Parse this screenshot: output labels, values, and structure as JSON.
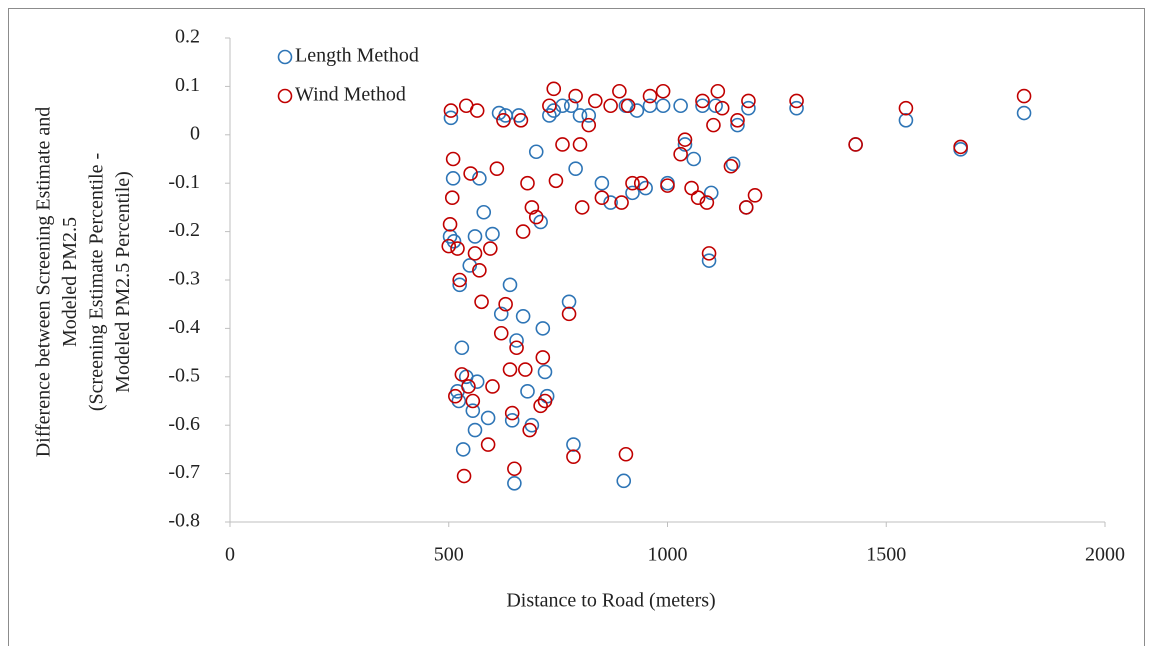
{
  "chart_data": {
    "type": "scatter",
    "x_label": "Distance to Road (meters)",
    "y_label": [
      "Difference between Screening Estimate and",
      "Modeled PM2.5",
      "(Screening Estimate Percentile -",
      "Modeled PM2.5 Percentile)"
    ],
    "xlim": [
      0,
      2000
    ],
    "xticks": [
      0,
      500,
      1000,
      1500,
      2000
    ],
    "ylim": [
      -0.8,
      0.2
    ],
    "yticks": [
      0.2,
      0.1,
      0,
      -0.1,
      -0.2,
      -0.3,
      -0.4,
      -0.5,
      -0.6,
      -0.7,
      -0.8
    ],
    "legend": "top-left",
    "series": [
      {
        "name": "Length Method",
        "color": "#2e75b6",
        "x": [
          505,
          510,
          503,
          512,
          520,
          523,
          525,
          530,
          533,
          540,
          548,
          555,
          560,
          560,
          565,
          570,
          580,
          590,
          600,
          615,
          620,
          630,
          640,
          645,
          650,
          655,
          660,
          670,
          680,
          690,
          700,
          710,
          715,
          720,
          725,
          730,
          740,
          760,
          775,
          780,
          785,
          790,
          800,
          820,
          850,
          870,
          900,
          905,
          920,
          930,
          950,
          960,
          990,
          1000,
          1030,
          1040,
          1060,
          1080,
          1095,
          1100,
          1110,
          1150,
          1160,
          1180,
          1185,
          1295,
          1430,
          1545,
          1670,
          1815
        ],
        "values": [
          0.035,
          -0.09,
          -0.21,
          -0.22,
          -0.53,
          -0.55,
          -0.31,
          -0.44,
          -0.65,
          -0.5,
          -0.27,
          -0.57,
          -0.61,
          -0.21,
          -0.51,
          -0.09,
          -0.16,
          -0.585,
          -0.205,
          0.045,
          -0.37,
          0.04,
          -0.31,
          -0.59,
          -0.72,
          -0.425,
          0.04,
          -0.375,
          -0.53,
          -0.6,
          -0.035,
          -0.18,
          -0.4,
          -0.49,
          -0.54,
          0.04,
          0.05,
          0.06,
          -0.345,
          0.06,
          -0.64,
          -0.07,
          0.04,
          0.04,
          -0.1,
          -0.14,
          -0.715,
          0.06,
          -0.12,
          0.05,
          -0.11,
          0.06,
          0.06,
          -0.1,
          0.06,
          -0.02,
          -0.05,
          0.06,
          -0.26,
          -0.12,
          0.06,
          -0.06,
          0.02,
          -0.15,
          0.055,
          0.055,
          -0.02,
          0.03,
          -0.03,
          0.045
        ]
      },
      {
        "name": "Wind Method",
        "color": "#c00000",
        "x": [
          505,
          503,
          500,
          508,
          510,
          515,
          520,
          525,
          530,
          535,
          540,
          545,
          550,
          555,
          560,
          565,
          570,
          575,
          590,
          595,
          600,
          610,
          620,
          625,
          630,
          640,
          645,
          650,
          655,
          665,
          670,
          675,
          680,
          685,
          690,
          700,
          710,
          715,
          720,
          730,
          740,
          745,
          760,
          775,
          785,
          790,
          800,
          805,
          820,
          835,
          850,
          870,
          890,
          895,
          905,
          910,
          920,
          940,
          960,
          990,
          1000,
          1030,
          1040,
          1055,
          1070,
          1080,
          1090,
          1095,
          1105,
          1115,
          1125,
          1145,
          1160,
          1180,
          1185,
          1200,
          1295,
          1430,
          1545,
          1670,
          1815
        ],
        "values": [
          0.05,
          -0.185,
          -0.23,
          -0.13,
          -0.05,
          -0.54,
          -0.235,
          -0.3,
          -0.495,
          -0.705,
          0.06,
          -0.52,
          -0.08,
          -0.55,
          -0.245,
          0.05,
          -0.28,
          -0.345,
          -0.64,
          -0.235,
          -0.52,
          -0.07,
          -0.41,
          0.03,
          -0.35,
          -0.485,
          -0.575,
          -0.69,
          -0.44,
          0.03,
          -0.2,
          -0.485,
          -0.1,
          -0.61,
          -0.15,
          -0.17,
          -0.56,
          -0.46,
          -0.55,
          0.06,
          0.095,
          -0.095,
          -0.02,
          -0.37,
          -0.665,
          0.08,
          -0.02,
          -0.15,
          0.02,
          0.07,
          -0.13,
          0.06,
          0.09,
          -0.14,
          -0.66,
          0.06,
          -0.1,
          -0.1,
          0.08,
          0.09,
          -0.105,
          -0.04,
          -0.01,
          -0.11,
          -0.13,
          0.07,
          -0.14,
          -0.245,
          0.02,
          0.09,
          0.055,
          -0.065,
          0.03,
          -0.15,
          0.07,
          -0.125,
          0.07,
          -0.02,
          0.055,
          -0.025,
          0.08
        ]
      }
    ]
  }
}
